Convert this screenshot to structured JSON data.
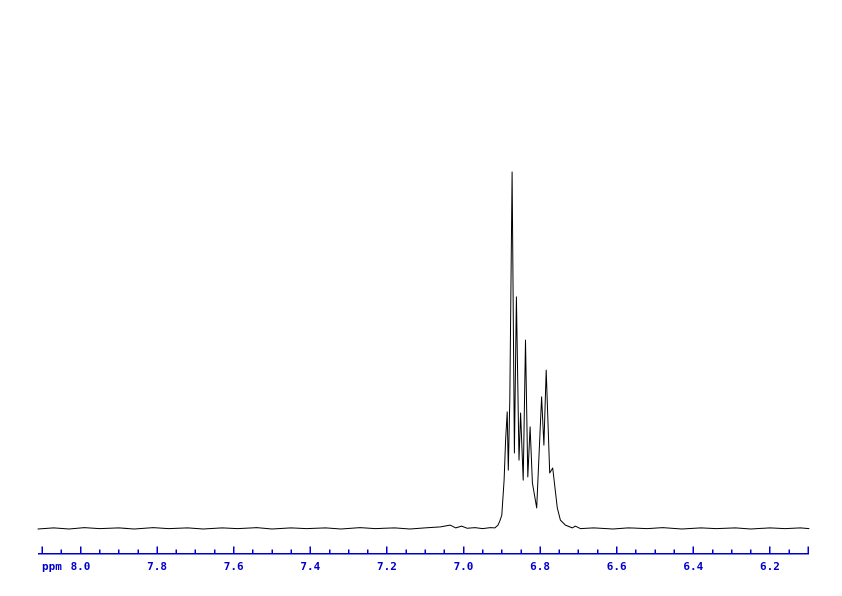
{
  "window": {
    "background_color": "#ffffff"
  },
  "colors": {
    "trace": "#000000",
    "axis": "#0000cc",
    "background": "#ffffff"
  },
  "chart_data": {
    "type": "line",
    "title": "",
    "description": "1H NMR spectrum trace with flat noisy baseline and an aromatic multiplet cluster between ~6.91 and ~6.70 ppm; tallest sharp peak at ~6.87 ppm, secondary peak group at ~6.79 ppm; tiny noise blip near 7.03 ppm",
    "xlabel": "ppm",
    "ylabel": "",
    "x_axis": {
      "unit_label": "ppm",
      "range_ppm": [
        8.11,
        6.1
      ],
      "direction": "left-to-right decreasing",
      "tick_labels": [
        "8.0",
        "7.8",
        "7.6",
        "7.4",
        "7.2",
        "7.0",
        "6.8",
        "6.6",
        "6.4",
        "6.2"
      ],
      "minor_tick_step_ppm": 0.05,
      "major_tick_step_ppm": 0.2
    },
    "grid": false,
    "legend": false,
    "peaks_ppm": [
      6.886,
      6.873,
      6.862,
      6.851,
      6.838,
      6.826,
      6.796,
      6.784,
      6.767
    ],
    "tallest_peak_ppm": 6.873,
    "series": [
      {
        "name": "intensity",
        "units": "fraction of tallest peak",
        "points": [
          [
            8.111,
            0.0
          ],
          [
            8.07,
            0.003
          ],
          [
            8.03,
            0.0
          ],
          [
            7.99,
            0.004
          ],
          [
            7.95,
            0.001
          ],
          [
            7.9,
            0.003
          ],
          [
            7.86,
            0.0
          ],
          [
            7.81,
            0.004
          ],
          [
            7.77,
            0.001
          ],
          [
            7.72,
            0.003
          ],
          [
            7.68,
            0.0
          ],
          [
            7.63,
            0.003
          ],
          [
            7.59,
            0.001
          ],
          [
            7.54,
            0.004
          ],
          [
            7.5,
            0.0
          ],
          [
            7.45,
            0.003
          ],
          [
            7.41,
            0.001
          ],
          [
            7.36,
            0.003
          ],
          [
            7.32,
            0.0
          ],
          [
            7.27,
            0.004
          ],
          [
            7.23,
            0.001
          ],
          [
            7.18,
            0.003
          ],
          [
            7.14,
            0.0
          ],
          [
            7.1,
            0.003
          ],
          [
            7.06,
            0.006
          ],
          [
            7.035,
            0.011
          ],
          [
            7.02,
            0.003
          ],
          [
            7.005,
            0.008
          ],
          [
            6.99,
            0.002
          ],
          [
            6.97,
            0.004
          ],
          [
            6.95,
            0.001
          ],
          [
            6.93,
            0.004
          ],
          [
            6.918,
            0.003
          ],
          [
            6.91,
            0.011
          ],
          [
            6.905,
            0.023
          ],
          [
            6.9,
            0.039
          ],
          [
            6.894,
            0.137
          ],
          [
            6.89,
            0.249
          ],
          [
            6.886,
            0.328
          ],
          [
            6.883,
            0.165
          ],
          [
            6.879,
            0.361
          ],
          [
            6.873,
            1.0
          ],
          [
            6.867,
            0.213
          ],
          [
            6.862,
            0.65
          ],
          [
            6.855,
            0.193
          ],
          [
            6.851,
            0.325
          ],
          [
            6.844,
            0.137
          ],
          [
            6.838,
            0.529
          ],
          [
            6.832,
            0.146
          ],
          [
            6.826,
            0.286
          ],
          [
            6.82,
            0.129
          ],
          [
            6.809,
            0.059
          ],
          [
            6.796,
            0.37
          ],
          [
            6.79,
            0.235
          ],
          [
            6.784,
            0.445
          ],
          [
            6.775,
            0.157
          ],
          [
            6.767,
            0.171
          ],
          [
            6.755,
            0.059
          ],
          [
            6.747,
            0.025
          ],
          [
            6.734,
            0.011
          ],
          [
            6.716,
            0.003
          ],
          [
            6.708,
            0.008
          ],
          [
            6.695,
            0.001
          ],
          [
            6.66,
            0.003
          ],
          [
            6.61,
            0.0
          ],
          [
            6.57,
            0.003
          ],
          [
            6.52,
            0.001
          ],
          [
            6.48,
            0.004
          ],
          [
            6.43,
            0.0
          ],
          [
            6.38,
            0.003
          ],
          [
            6.34,
            0.001
          ],
          [
            6.29,
            0.003
          ],
          [
            6.25,
            0.0
          ],
          [
            6.2,
            0.003
          ],
          [
            6.16,
            0.001
          ],
          [
            6.12,
            0.003
          ],
          [
            6.098,
            0.001
          ]
        ]
      }
    ]
  }
}
